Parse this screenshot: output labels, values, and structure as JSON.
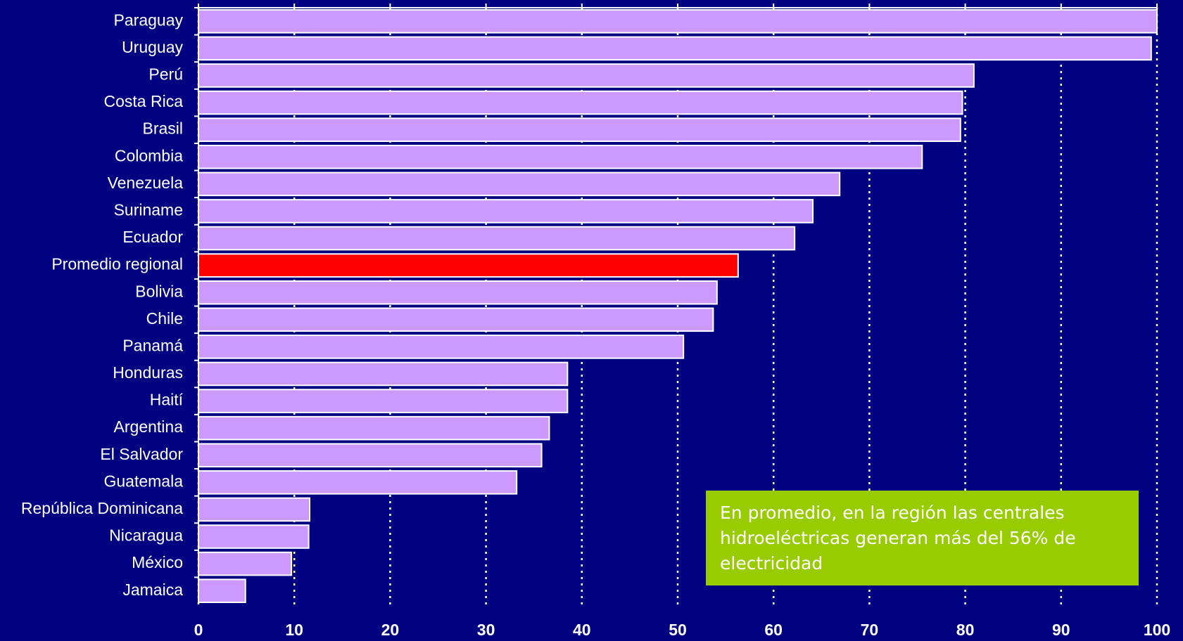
{
  "chart_data": {
    "type": "bar",
    "orientation": "horizontal",
    "categories": [
      "Paraguay",
      "Uruguay",
      "Perú",
      "Costa Rica",
      "Brasil",
      "Colombia",
      "Venezuela",
      "Suriname",
      "Ecuador",
      "Promedio regional",
      "Bolivia",
      "Chile",
      "Panamá",
      "Honduras",
      "Haití",
      "Argentina",
      "El Salvador",
      "Guatemala",
      "República Dominicana",
      "Nicaragua",
      "México",
      "Jamaica"
    ],
    "values": [
      100,
      99.4,
      80.9,
      79.7,
      79.5,
      75.5,
      66.9,
      64.1,
      62.2,
      56.3,
      54.1,
      53.7,
      50.6,
      38.5,
      38.5,
      36.6,
      35.8,
      33.2,
      11.6,
      11.5,
      9.7,
      4.9
    ],
    "colors": [
      "#cc99ff",
      "#cc99ff",
      "#cc99ff",
      "#cc99ff",
      "#cc99ff",
      "#cc99ff",
      "#cc99ff",
      "#cc99ff",
      "#cc99ff",
      "#ff0000",
      "#cc99ff",
      "#cc99ff",
      "#cc99ff",
      "#cc99ff",
      "#cc99ff",
      "#cc99ff",
      "#cc99ff",
      "#cc99ff",
      "#cc99ff",
      "#cc99ff",
      "#cc99ff",
      "#cc99ff"
    ],
    "xlim": [
      0,
      100
    ],
    "xticks": [
      0,
      10,
      20,
      30,
      40,
      50,
      60,
      70,
      80,
      90,
      100
    ],
    "grid": true,
    "annotation": "En promedio, en la región las centrales hidroeléctricas generan más del 56% de electricidad"
  }
}
